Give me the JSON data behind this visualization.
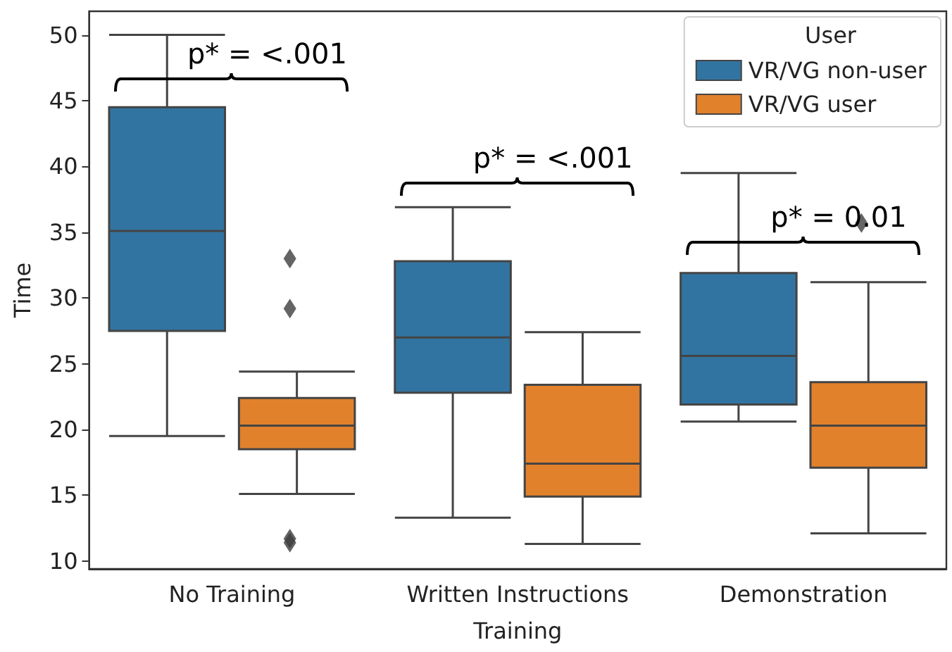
{
  "chart_data": {
    "type": "box",
    "xlabel": "Training",
    "ylabel": "Time",
    "legend_title": "User",
    "legend": "top right",
    "grid": false,
    "categories": [
      "No Training",
      "Written Instructions",
      "Demonstration"
    ],
    "ylim": [
      9.4,
      51.8
    ],
    "yticks": [
      10,
      15,
      20,
      25,
      30,
      35,
      40,
      45,
      50
    ],
    "series": [
      {
        "name": "VR/VG non-user",
        "color": "#3274a1",
        "boxes": [
          {
            "low": 19.5,
            "q1": 27.5,
            "median": 35.1,
            "q3": 44.5,
            "high": 50
          },
          {
            "low": 13.3,
            "q1": 22.8,
            "median": 27,
            "q3": 32.8,
            "high": 36.9
          },
          {
            "low": 20.6,
            "q1": 21.9,
            "median": 25.6,
            "q3": 31.9,
            "high": 39.5
          }
        ]
      },
      {
        "name": "VR/VG user",
        "color": "#e1812c",
        "boxes": [
          {
            "low": 15.1,
            "q1": 18.5,
            "median": 20.3,
            "q3": 22.4,
            "high": 24.4,
            "outliers": [
              33,
              29.2,
              11.7,
              11.4
            ]
          },
          {
            "low": 11.3,
            "q1": 14.9,
            "median": 17.4,
            "q3": 23.4,
            "high": 27.4
          },
          {
            "low": 12.1,
            "q1": 17.1,
            "median": 20.3,
            "q3": 23.6,
            "high": 31.2,
            "outliers": [
              35.7
            ]
          }
        ]
      }
    ],
    "annotations": [
      "p* = <.001",
      "p* = <.001",
      "p* = 0.01"
    ]
  }
}
